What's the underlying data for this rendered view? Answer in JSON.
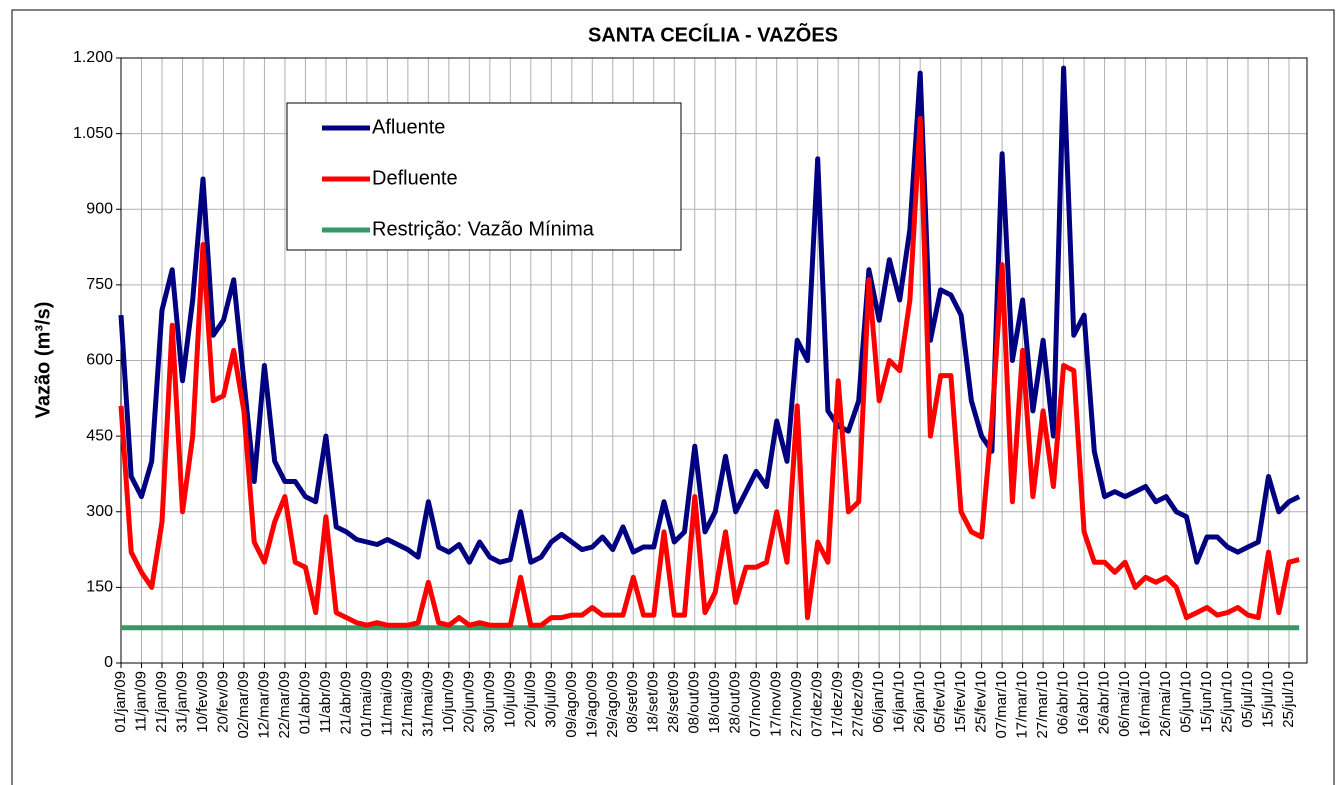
{
  "chart_data": {
    "type": "line",
    "title": "SANTA CECÍLIA - VAZÕES",
    "y_label": "Vazão (m³/s)",
    "categories": [
      "01/jan/09",
      null,
      "11/jan/09",
      null,
      "21/jan/09",
      null,
      "31/jan/09",
      null,
      "10/fev/09",
      null,
      "20/fev/09",
      null,
      "02/mar/09",
      null,
      "12/mar/09",
      null,
      "22/mar/09",
      null,
      "01/abr/09",
      null,
      "11/abr/09",
      null,
      "21/abr/09",
      null,
      "01/mai/09",
      null,
      "11/mai/09",
      null,
      "21/mai/09",
      null,
      "31/mai/09",
      null,
      "10/jun/09",
      null,
      "20/jun/09",
      null,
      "30/jun/09",
      null,
      "10/jul/09",
      null,
      "20/jul/09",
      null,
      "30/jul/09",
      null,
      "09/ago/09",
      null,
      "19/ago/09",
      null,
      "29/ago/09",
      null,
      "08/set/09",
      null,
      "18/set/09",
      null,
      "28/set/09",
      null,
      "08/out/09",
      null,
      "18/out/09",
      null,
      "28/out/09",
      null,
      "07/nov/09",
      null,
      "17/nov/09",
      null,
      "27/nov/09",
      null,
      "07/dez/09",
      null,
      "17/dez/09",
      null,
      "27/dez/09",
      null,
      "06/jan/10",
      null,
      "16/jan/10",
      null,
      "26/jan/10",
      null,
      "05/fev/10",
      null,
      "15/fev/10",
      null,
      "25/fev/10",
      null,
      "07/mar/10",
      null,
      "17/mar/10",
      null,
      "27/mar/10",
      null,
      "06/abr/10",
      null,
      "16/abr/10",
      null,
      "26/abr/10",
      null,
      "06/mai/10",
      null,
      "16/mai/10",
      null,
      "26/mai/10",
      null,
      "05/jun/10",
      null,
      "15/jun/10",
      null,
      "25/jun/10",
      null,
      "05/jul/10",
      null,
      "15/jul/10",
      null,
      "25/jul/10",
      null
    ],
    "series": [
      {
        "name": "Afluente",
        "color": "#000080",
        "values": [
          690,
          370,
          330,
          400,
          700,
          780,
          560,
          720,
          960,
          650,
          680,
          760,
          560,
          360,
          590,
          400,
          360,
          360,
          330,
          320,
          450,
          270,
          260,
          245,
          240,
          235,
          245,
          235,
          225,
          210,
          320,
          230,
          220,
          235,
          200,
          240,
          210,
          200,
          205,
          300,
          200,
          210,
          240,
          255,
          240,
          225,
          230,
          250,
          225,
          270,
          220,
          230,
          230,
          320,
          240,
          260,
          430,
          260,
          300,
          410,
          300,
          340,
          380,
          350,
          480,
          400,
          640,
          600,
          1000,
          500,
          470,
          460,
          520,
          780,
          680,
          800,
          720,
          860,
          1170,
          640,
          740,
          730,
          690,
          520,
          450,
          420,
          1010,
          600,
          720,
          500,
          640,
          450,
          1180,
          650,
          690,
          420,
          330,
          340,
          330,
          340,
          350,
          320,
          330,
          300,
          290,
          200,
          250,
          250,
          230,
          220,
          230,
          240,
          370,
          300,
          320,
          330
        ]
      },
      {
        "name": "Defluente",
        "color": "#ff0000",
        "values": [
          510,
          220,
          180,
          150,
          280,
          670,
          300,
          450,
          830,
          520,
          530,
          620,
          500,
          240,
          200,
          280,
          330,
          200,
          190,
          100,
          290,
          100,
          90,
          80,
          75,
          80,
          75,
          75,
          75,
          80,
          160,
          80,
          75,
          90,
          75,
          80,
          75,
          75,
          75,
          170,
          75,
          75,
          90,
          90,
          95,
          95,
          110,
          95,
          95,
          95,
          170,
          95,
          95,
          260,
          95,
          95,
          330,
          100,
          140,
          260,
          120,
          190,
          190,
          200,
          300,
          200,
          510,
          90,
          240,
          200,
          560,
          300,
          320,
          760,
          520,
          600,
          580,
          720,
          1080,
          450,
          570,
          570,
          300,
          260,
          250,
          480,
          790,
          320,
          620,
          330,
          500,
          350,
          590,
          580,
          260,
          200,
          200,
          180,
          200,
          150,
          170,
          160,
          170,
          150,
          90,
          100,
          110,
          95,
          100,
          110,
          95,
          90,
          220,
          100,
          200,
          205
        ]
      },
      {
        "name": "Restrição: Vazão Mínima",
        "color": "#339966",
        "values": [
          70,
          70,
          70,
          70,
          70,
          70,
          70,
          70,
          70,
          70,
          70,
          70,
          70,
          70,
          70,
          70,
          70,
          70,
          70,
          70,
          70,
          70,
          70,
          70,
          70,
          70,
          70,
          70,
          70,
          70,
          70,
          70,
          70,
          70,
          70,
          70,
          70,
          70,
          70,
          70,
          70,
          70,
          70,
          70,
          70,
          70,
          70,
          70,
          70,
          70,
          70,
          70,
          70,
          70,
          70,
          70,
          70,
          70,
          70,
          70,
          70,
          70,
          70,
          70,
          70,
          70,
          70,
          70,
          70,
          70,
          70,
          70,
          70,
          70,
          70,
          70,
          70,
          70,
          70,
          70,
          70,
          70,
          70,
          70,
          70,
          70,
          70,
          70,
          70,
          70,
          70,
          70,
          70,
          70,
          70,
          70,
          70,
          70,
          70,
          70,
          70,
          70,
          70,
          70,
          70,
          70,
          70,
          70,
          70,
          70,
          70,
          70,
          70,
          70,
          70,
          70
        ]
      }
    ],
    "ylim": [
      0,
      1200
    ],
    "yticks": [
      0,
      150,
      300,
      450,
      600,
      750,
      900,
      {
        "value": 1050,
        "label": "1.050"
      },
      {
        "value": 1200,
        "label": "1.200"
      }
    ],
    "grid": true
  }
}
